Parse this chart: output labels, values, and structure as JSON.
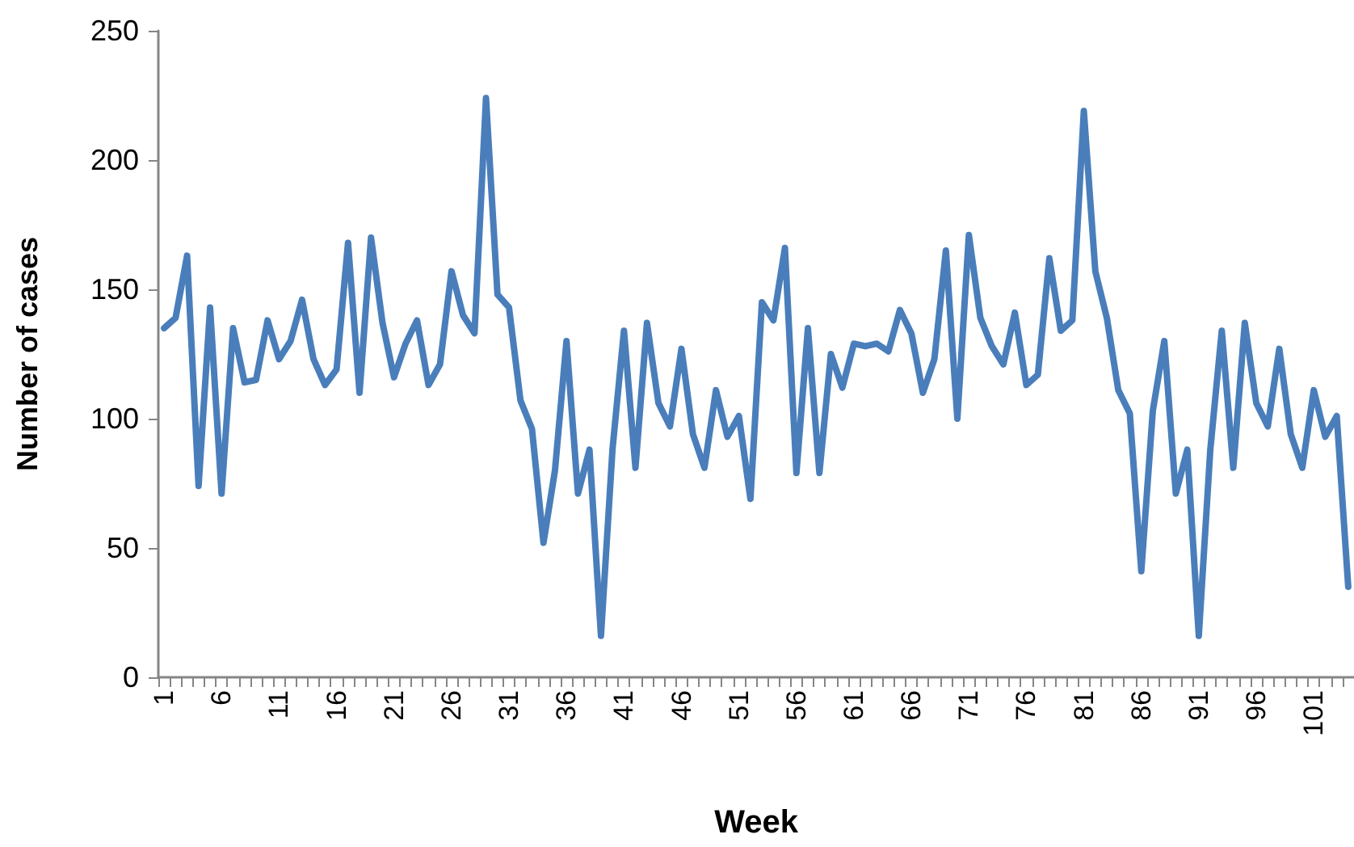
{
  "chart_data": {
    "type": "line",
    "xlabel": "Week",
    "ylabel": "Number of cases",
    "categories": [
      "1",
      null,
      null,
      null,
      null,
      "6",
      null,
      null,
      null,
      null,
      "11",
      null,
      null,
      null,
      null,
      "16",
      null,
      null,
      null,
      null,
      "21",
      null,
      null,
      null,
      null,
      "26",
      null,
      null,
      null,
      null,
      "31",
      null,
      null,
      null,
      null,
      "36",
      null,
      null,
      null,
      null,
      "41",
      null,
      null,
      null,
      null,
      "46",
      null,
      null,
      null,
      null,
      "51",
      null,
      null,
      null,
      null,
      "56",
      null,
      null,
      null,
      null,
      "61",
      null,
      null,
      null,
      null,
      "66",
      null,
      null,
      null,
      null,
      "71",
      null,
      null,
      null,
      null,
      "76",
      null,
      null,
      null,
      null,
      "81",
      null,
      null,
      null,
      null,
      "86",
      null,
      null,
      null,
      null,
      "91",
      null,
      null,
      null,
      null,
      "96",
      null,
      null,
      null,
      null,
      "101",
      null,
      null,
      null
    ],
    "series": [
      {
        "color": "#4a7ebb",
        "values": [
          135,
          139,
          163,
          74,
          143,
          71,
          135,
          114,
          115,
          138,
          123,
          130,
          146,
          123,
          113,
          119,
          168,
          110,
          170,
          137,
          116,
          129,
          138,
          113,
          121,
          157,
          140,
          133,
          224,
          148,
          143,
          107,
          96,
          52,
          80,
          130,
          71,
          88,
          16,
          88,
          134,
          81,
          137,
          106,
          97,
          127,
          94,
          81,
          111,
          93,
          101,
          69,
          145,
          138,
          166,
          79,
          135,
          79,
          125,
          112,
          129,
          128,
          129,
          126,
          142,
          133,
          110,
          123,
          165,
          100,
          171,
          139,
          128,
          121,
          141,
          113,
          117,
          162,
          134,
          138,
          219,
          157,
          139,
          111,
          102,
          41,
          103,
          130,
          71,
          88,
          16,
          88,
          134,
          81,
          137,
          106,
          97,
          127,
          94,
          81,
          111,
          93,
          101,
          35
        ]
      }
    ],
    "ylim": [
      0,
      250
    ],
    "yticks": [
      0,
      50,
      100,
      150,
      200,
      250
    ],
    "grid": false,
    "marker": "none",
    "line_style": "solid"
  }
}
